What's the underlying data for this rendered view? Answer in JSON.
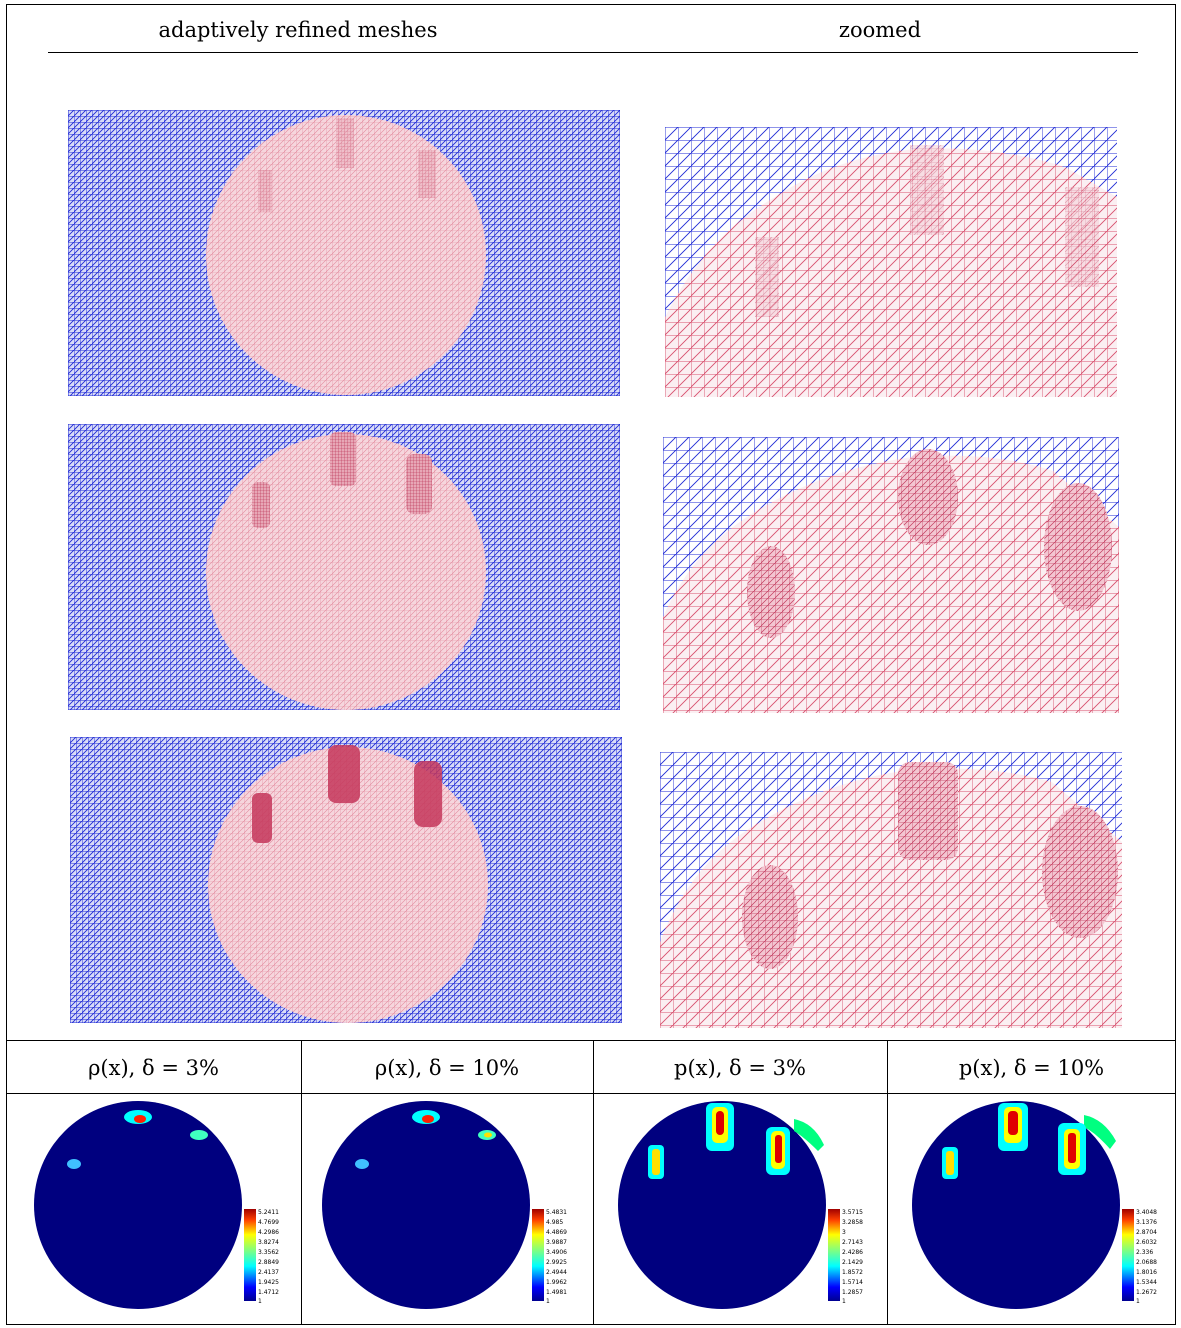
{
  "header": {
    "col1": "adaptively refined meshes",
    "col2": "zoomed"
  },
  "mesh_colors": {
    "outside": "#1f2ad6",
    "inside": "#d8506e",
    "inside_fill": "#f5d3da",
    "refined": "#b8284c"
  },
  "bottom": {
    "titles": [
      "ρ(x), δ = 3%",
      "ρ(x), δ = 10%",
      "p(x), δ = 3%",
      "p(x), δ = 10%"
    ],
    "colorbars": [
      [
        "5.2411",
        "4.7699",
        "4.2986",
        "3.8274",
        "3.3562",
        "2.8849",
        "2.4137",
        "1.9425",
        "1.4712",
        "1"
      ],
      [
        "5.4831",
        "4.985",
        "4.4869",
        "3.9887",
        "3.4906",
        "2.9925",
        "2.4944",
        "1.9962",
        "1.4981",
        "1"
      ],
      [
        "3.5715",
        "3.2858",
        "3",
        "2.7143",
        "2.4286",
        "2.1429",
        "1.8572",
        "1.5714",
        "1.2857",
        "1"
      ],
      [
        "3.4048",
        "3.1376",
        "2.8704",
        "2.6032",
        "2.336",
        "2.0688",
        "1.8016",
        "1.5344",
        "1.2672",
        "1"
      ]
    ]
  }
}
